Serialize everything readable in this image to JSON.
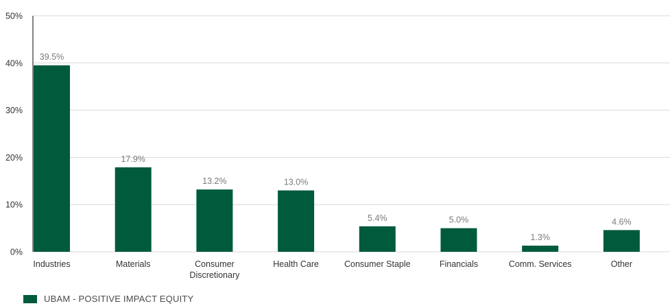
{
  "chart_data": {
    "type": "bar",
    "categories": [
      [
        "Industries"
      ],
      [
        "Materials"
      ],
      [
        "Consumer",
        "Discretionary"
      ],
      [
        "Health Care"
      ],
      [
        "Consumer Staple"
      ],
      [
        "Financials"
      ],
      [
        "Comm. Services"
      ],
      [
        "Other"
      ]
    ],
    "series": [
      {
        "name": "UBAM - POSITIVE IMPACT EQUITY",
        "values": [
          39.5,
          17.9,
          13.2,
          13.0,
          5.4,
          5.0,
          1.3,
          4.6
        ],
        "color": "#005a3c"
      }
    ],
    "data_labels": [
      "39.5%",
      "17.9%",
      "13.2%",
      "13.0%",
      "5.4%",
      "5.0%",
      "1.3%",
      "4.6%"
    ],
    "y_ticks": [
      0,
      10,
      20,
      30,
      40,
      50
    ],
    "y_tick_labels": [
      "0%",
      "10%",
      "20%",
      "30%",
      "40%",
      "50%"
    ],
    "ylim": [
      0,
      50
    ],
    "grid": true,
    "legend_position": "bottom-left",
    "colors": {
      "bar": "#005a3c",
      "grid": "#d9d9d9",
      "axis": "#333333",
      "text": "#333333",
      "value_label": "#7a7a7a"
    }
  }
}
